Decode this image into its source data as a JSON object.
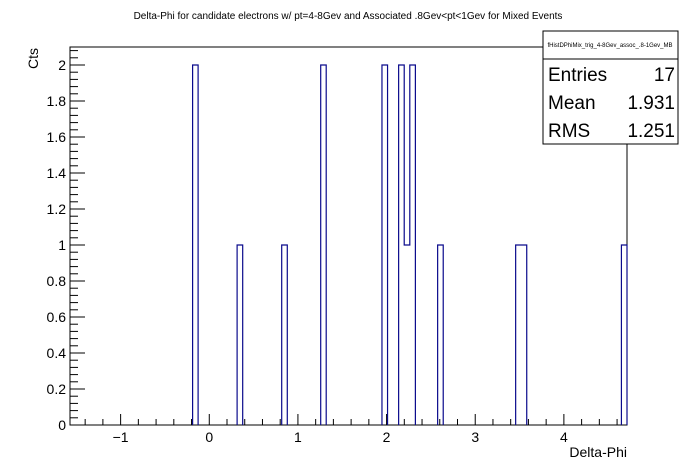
{
  "chart_data": {
    "type": "bar",
    "title": "Delta-Phi for candidate electrons w/ pt=4-8Gev and Associated .8Gev<pt<1Gev for Mixed Events",
    "xlabel": "Delta-Phi",
    "ylabel": "Cts",
    "xlim": [
      -1.571,
      4.712
    ],
    "ylim": [
      0,
      2.1
    ],
    "nbins": 100,
    "bin_width": 0.0628,
    "x_ticks": [
      -1,
      0,
      1,
      2,
      3,
      4
    ],
    "x_tick_labels": [
      "−1",
      "0",
      "1",
      "2",
      "3",
      "4"
    ],
    "y_ticks": [
      0,
      0.2,
      0.4,
      0.6,
      0.8,
      1,
      1.2,
      1.4,
      1.6,
      1.8,
      2
    ],
    "y_tick_labels": [
      "0",
      "0.2",
      "0.4",
      "0.6",
      "0.8",
      "1",
      "1.2",
      "1.4",
      "1.6",
      "1.8",
      "2"
    ],
    "bins": [
      {
        "low": -0.188,
        "high": -0.126,
        "count": 2
      },
      {
        "low": 0.314,
        "high": 0.377,
        "count": 1
      },
      {
        "low": 0.817,
        "high": 0.88,
        "count": 1
      },
      {
        "low": 1.257,
        "high": 1.319,
        "count": 2
      },
      {
        "low": 1.948,
        "high": 2.011,
        "count": 2
      },
      {
        "low": 2.136,
        "high": 2.199,
        "count": 2
      },
      {
        "low": 2.199,
        "high": 2.262,
        "count": 1
      },
      {
        "low": 2.262,
        "high": 2.325,
        "count": 2
      },
      {
        "low": 2.576,
        "high": 2.639,
        "count": 1
      },
      {
        "low": 3.456,
        "high": 3.519,
        "count": 1
      },
      {
        "low": 3.519,
        "high": 3.581,
        "count": 1
      },
      {
        "low": 4.649,
        "high": 4.712,
        "count": 1
      }
    ],
    "line_color": "#0a0a8c",
    "grid": false,
    "legend_placement": "top-right"
  },
  "stats_box": {
    "name": "fHistDPhiMix_trig_4-8Gev_assoc_.8-1Gev_MB",
    "entries_label": "Entries",
    "entries_value": "17",
    "mean_label": "Mean",
    "mean_value": "1.931",
    "rms_label": "RMS",
    "rms_value": "1.251"
  }
}
